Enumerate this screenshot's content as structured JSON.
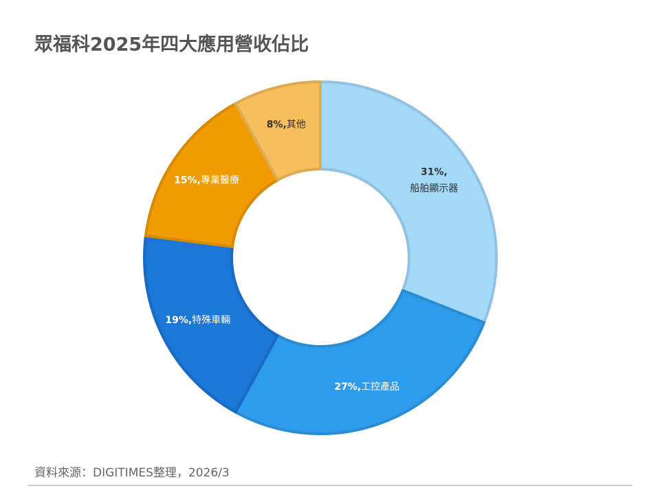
{
  "chart_data": {
    "type": "donut",
    "title": "眾福科2025年四大應用營收佔比",
    "categories": [
      "船舶顯示器",
      "工控產品",
      "特殊車輛",
      "專業醫療",
      "其他"
    ],
    "values": [
      31,
      27,
      19,
      15,
      8
    ],
    "value_labels": [
      "31%,",
      "27%,",
      "19%,",
      "15%,",
      "8%,"
    ],
    "colors": [
      "#a3d9f9",
      "#2f9ceb",
      "#1b76d8",
      "#f19b03",
      "#f6bf5c"
    ],
    "label_colors": [
      "#333333",
      "#ffffff",
      "#ffffff",
      "#ffffff",
      "#333333"
    ],
    "source": "資料來源：DIGITIMES整理，2026/3"
  }
}
